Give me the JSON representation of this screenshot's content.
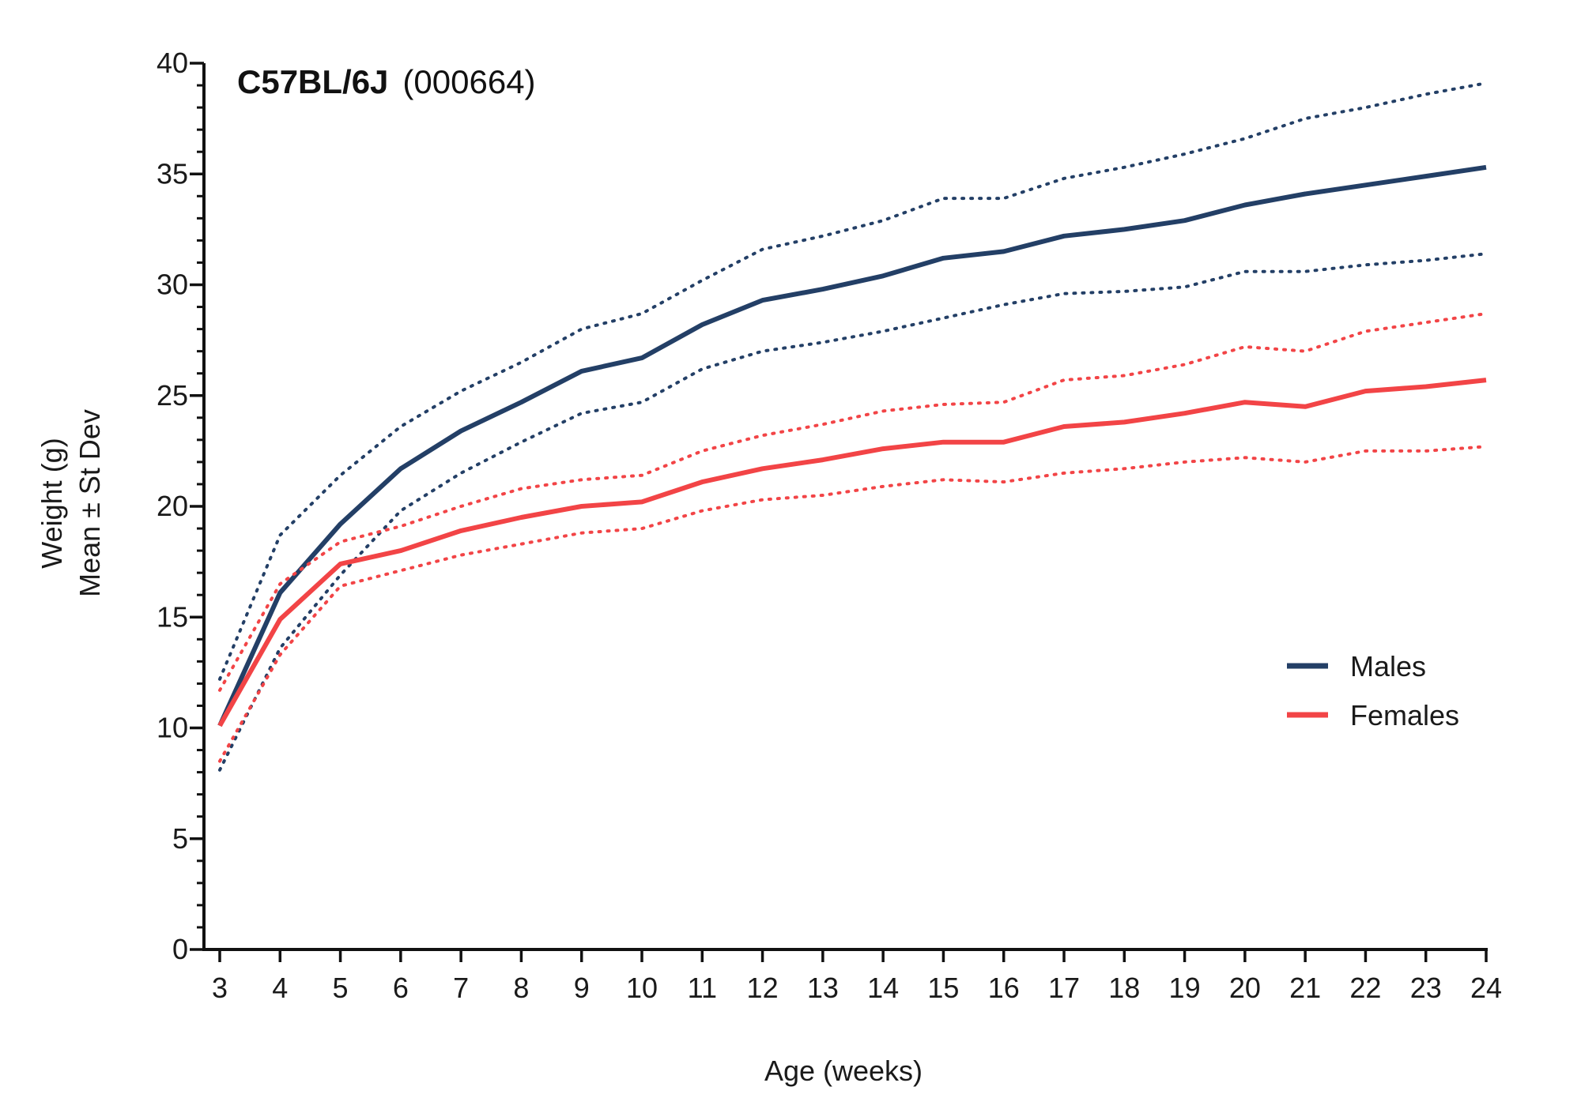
{
  "chart_data": {
    "type": "line",
    "title_bold": "C57BL/6J",
    "title_normal": "(000664)",
    "xlabel": "Age (weeks)",
    "ylabel_line1": "Weight (g)",
    "ylabel_line2": "Mean ± St Dev",
    "x": [
      3,
      4,
      5,
      6,
      7,
      8,
      9,
      10,
      11,
      12,
      13,
      14,
      15,
      16,
      17,
      18,
      19,
      20,
      21,
      22,
      23,
      24
    ],
    "xlim": [
      3,
      24
    ],
    "ylim": [
      0,
      40
    ],
    "x_ticks": [
      3,
      4,
      5,
      6,
      7,
      8,
      9,
      10,
      11,
      12,
      13,
      14,
      15,
      16,
      17,
      18,
      19,
      20,
      21,
      22,
      23,
      24
    ],
    "y_ticks": [
      0,
      5,
      10,
      15,
      20,
      25,
      30,
      35,
      40
    ],
    "y_minor_step": 1,
    "grid": false,
    "legend_position": "right",
    "series": [
      {
        "name": "Males",
        "color": "#233f66",
        "mean": [
          10.1,
          16.1,
          19.2,
          21.7,
          23.4,
          24.7,
          26.1,
          26.7,
          28.2,
          29.3,
          29.8,
          30.4,
          31.2,
          31.5,
          32.2,
          32.5,
          32.9,
          33.6,
          34.1,
          34.5,
          34.9,
          35.3
        ],
        "upper": [
          12.2,
          18.7,
          21.4,
          23.6,
          25.2,
          26.5,
          28.0,
          28.7,
          30.2,
          31.6,
          32.2,
          32.9,
          33.9,
          33.9,
          34.8,
          35.3,
          35.9,
          36.6,
          37.5,
          38.0,
          38.6,
          39.1
        ],
        "lower": [
          8.1,
          13.6,
          16.9,
          19.8,
          21.5,
          22.9,
          24.2,
          24.7,
          26.2,
          27.0,
          27.4,
          27.9,
          28.5,
          29.1,
          29.6,
          29.7,
          29.9,
          30.6,
          30.6,
          30.9,
          31.1,
          31.4
        ]
      },
      {
        "name": "Females",
        "color": "#f24446",
        "mean": [
          10.1,
          14.9,
          17.4,
          18.0,
          18.9,
          19.5,
          20.0,
          20.2,
          21.1,
          21.7,
          22.1,
          22.6,
          22.9,
          22.9,
          23.6,
          23.8,
          24.2,
          24.7,
          24.5,
          25.2,
          25.4,
          25.7
        ],
        "upper": [
          11.7,
          16.5,
          18.4,
          19.1,
          20.0,
          20.8,
          21.2,
          21.4,
          22.5,
          23.2,
          23.7,
          24.3,
          24.6,
          24.7,
          25.7,
          25.9,
          26.4,
          27.2,
          27.0,
          27.9,
          28.3,
          28.7
        ],
        "lower": [
          8.5,
          13.3,
          16.4,
          17.1,
          17.8,
          18.3,
          18.8,
          19.0,
          19.8,
          20.3,
          20.5,
          20.9,
          21.2,
          21.1,
          21.5,
          21.7,
          22.0,
          22.2,
          22.0,
          22.5,
          22.5,
          22.7
        ]
      }
    ]
  }
}
